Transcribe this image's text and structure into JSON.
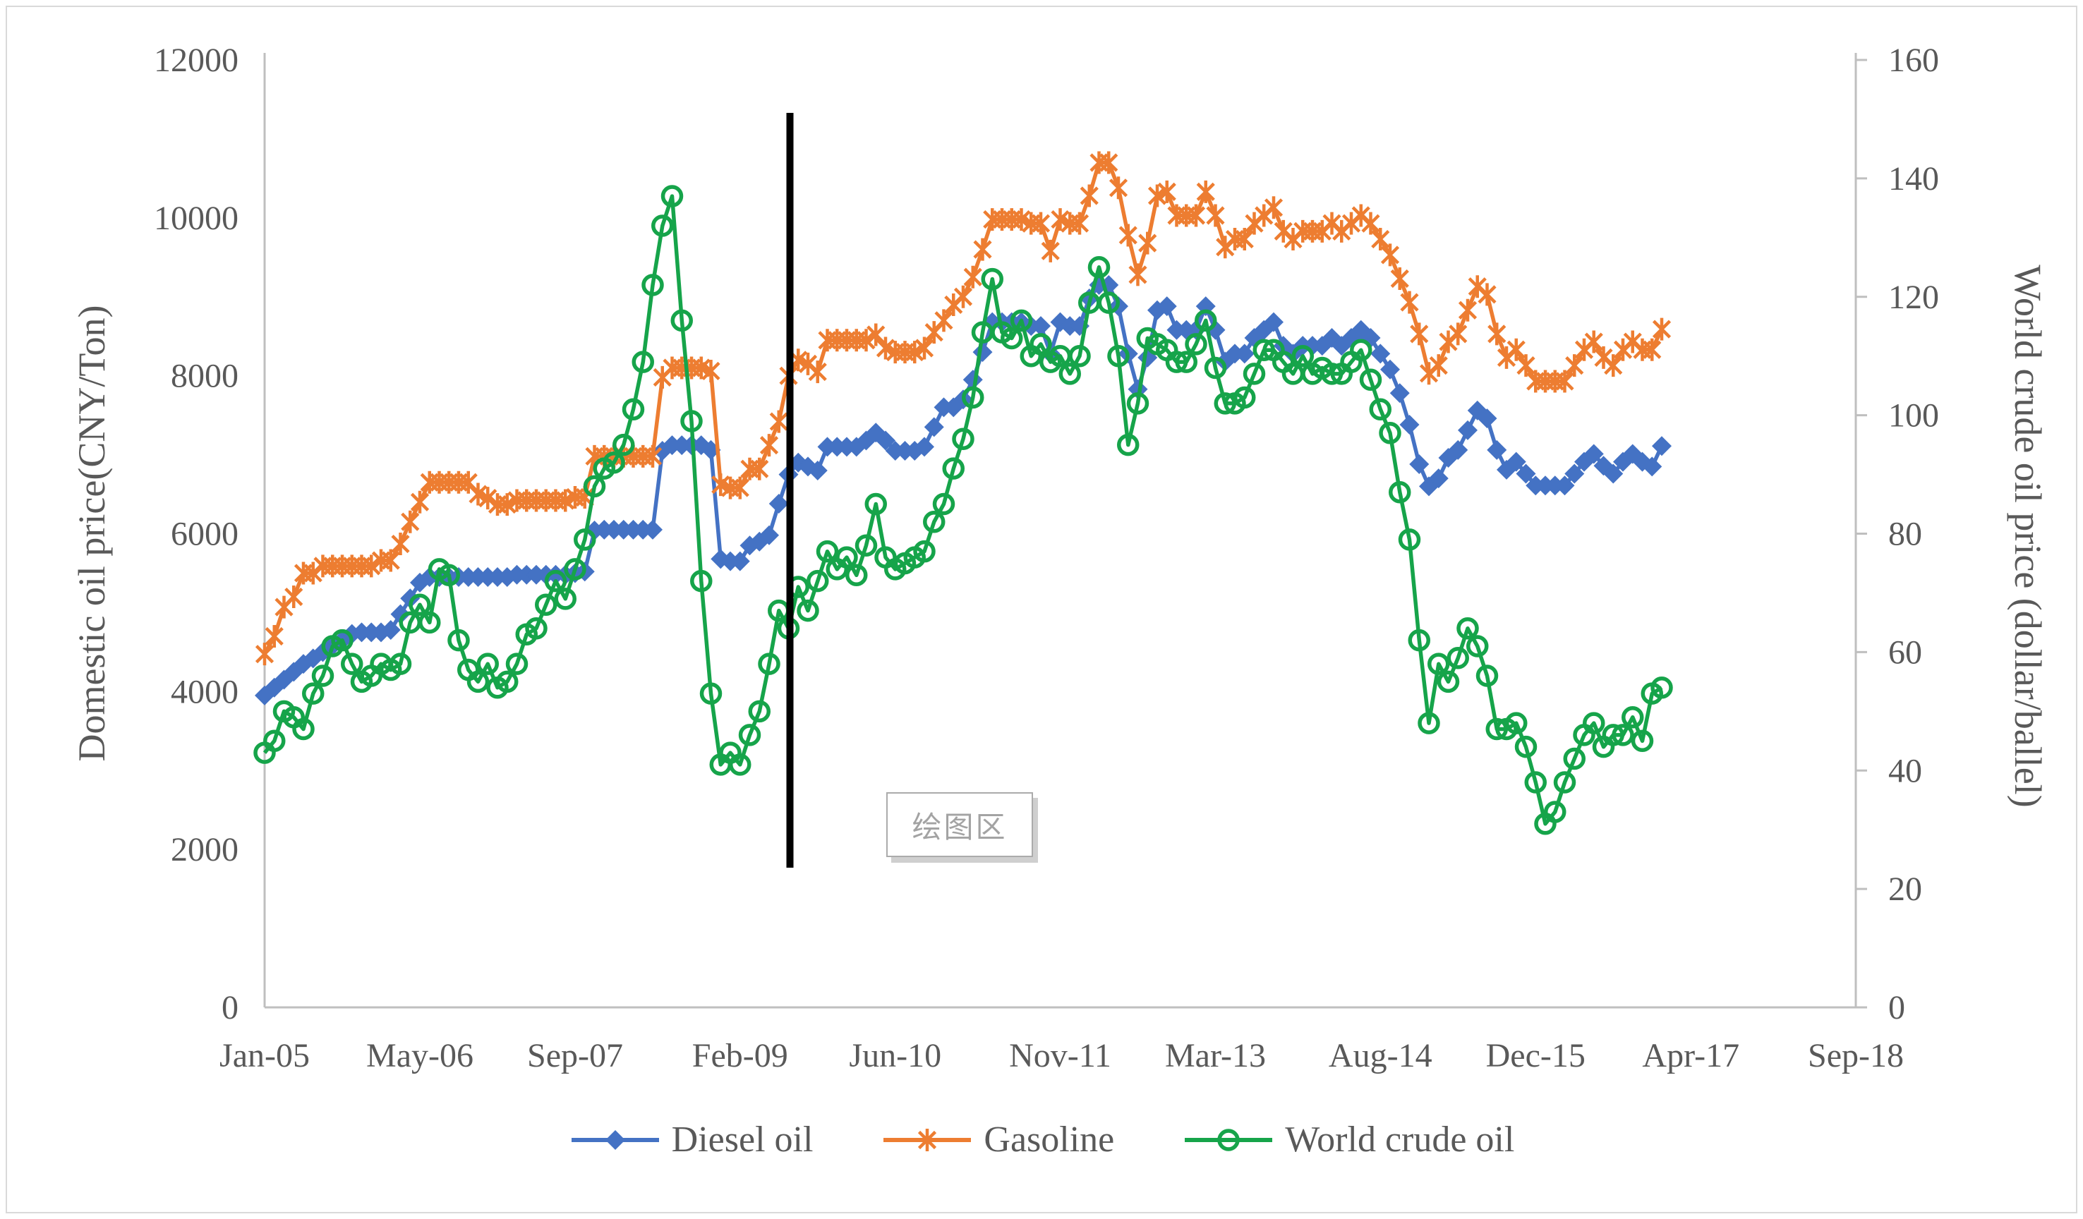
{
  "chart_data": {
    "type": "line",
    "title": "",
    "n_points": 145,
    "x_start": "Jan-05",
    "x_end_of_data": "Jan-17",
    "x_axis": {
      "tick_labels": [
        "Jan-05",
        "May-06",
        "Sep-07",
        "Feb-09",
        "Jun-10",
        "Nov-11",
        "Mar-13",
        "Aug-14",
        "Dec-15",
        "Apr-17",
        "Sep-18"
      ],
      "tick_month_indices": [
        0,
        16,
        32,
        49,
        65,
        82,
        98,
        115,
        131,
        147,
        164
      ],
      "total_months": 164
    },
    "left_axis": {
      "label": "Domestic oil price(CNY/Ton)",
      "min": 0,
      "max": 12000,
      "step": 2000,
      "tick_labels": [
        "0",
        "2000",
        "4000",
        "6000",
        "8000",
        "10000",
        "12000"
      ]
    },
    "right_axis": {
      "label": "World crude oil price (dollar/ballel)",
      "min": 0,
      "max": 160,
      "step": 20,
      "tick_labels": [
        "0",
        "20",
        "40",
        "60",
        "80",
        "100",
        "120",
        "140",
        "160"
      ]
    },
    "grid": false,
    "legend_position": "bottom",
    "series": [
      {
        "name": "Diesel oil",
        "axis": "left",
        "color": "#4472C4",
        "marker": "diamond",
        "values": [
          3950,
          4050,
          4150,
          4250,
          4350,
          4420,
          4500,
          4580,
          4650,
          4730,
          4750,
          4750,
          4750,
          4780,
          4980,
          5180,
          5380,
          5450,
          5450,
          5450,
          5450,
          5450,
          5450,
          5450,
          5450,
          5450,
          5480,
          5480,
          5480,
          5480,
          5480,
          5480,
          5500,
          5520,
          6040,
          6050,
          6050,
          6050,
          6050,
          6050,
          6050,
          7050,
          7120,
          7120,
          7120,
          7120,
          7060,
          5680,
          5650,
          5650,
          5850,
          5900,
          5980,
          6380,
          6750,
          6900,
          6850,
          6800,
          7100,
          7100,
          7100,
          7100,
          7180,
          7280,
          7180,
          7050,
          7050,
          7050,
          7100,
          7350,
          7600,
          7600,
          7700,
          7950,
          8300,
          8680,
          8680,
          8680,
          8680,
          8630,
          8630,
          8280,
          8680,
          8630,
          8630,
          8980,
          9150,
          9150,
          8880,
          8280,
          7830,
          8230,
          8830,
          8880,
          8580,
          8580,
          8580,
          8880,
          8580,
          8180,
          8280,
          8280,
          8480,
          8580,
          8680,
          8380,
          8280,
          8380,
          8380,
          8380,
          8480,
          8380,
          8480,
          8580,
          8480,
          8280,
          8080,
          7780,
          7380,
          6880,
          6600,
          6700,
          6960,
          7060,
          7310,
          7560,
          7460,
          7060,
          6810,
          6910,
          6760,
          6610,
          6610,
          6610,
          6610,
          6760,
          6910,
          7010,
          6860,
          6760,
          6910,
          7010,
          6910,
          6850,
          7110
        ]
      },
      {
        "name": "Gasoline",
        "axis": "left",
        "color": "#ED7D31",
        "marker": "asterisk",
        "values": [
          4475,
          4700,
          5070,
          5200,
          5500,
          5500,
          5590,
          5590,
          5590,
          5590,
          5590,
          5590,
          5660,
          5660,
          5870,
          6150,
          6400,
          6650,
          6650,
          6650,
          6650,
          6650,
          6500,
          6450,
          6370,
          6370,
          6420,
          6420,
          6420,
          6420,
          6420,
          6420,
          6460,
          6460,
          6980,
          6980,
          6980,
          6980,
          6980,
          6980,
          6980,
          7980,
          8100,
          8100,
          8100,
          8100,
          8060,
          6620,
          6580,
          6580,
          6820,
          6820,
          7120,
          7420,
          8000,
          8200,
          8150,
          8050,
          8450,
          8450,
          8450,
          8450,
          8450,
          8520,
          8350,
          8300,
          8300,
          8300,
          8350,
          8550,
          8700,
          8900,
          9000,
          9250,
          9600,
          9980,
          9980,
          9980,
          9980,
          9930,
          9930,
          9580,
          9980,
          9930,
          9930,
          10280,
          10700,
          10700,
          10380,
          9780,
          9280,
          9680,
          10280,
          10330,
          10030,
          10030,
          10030,
          10330,
          10030,
          9630,
          9730,
          9730,
          9930,
          10030,
          10130,
          9830,
          9730,
          9830,
          9830,
          9830,
          9930,
          9830,
          9930,
          10030,
          9930,
          9730,
          9530,
          9230,
          8930,
          8530,
          8030,
          8130,
          8430,
          8530,
          8830,
          9130,
          9030,
          8530,
          8230,
          8330,
          8130,
          7930,
          7930,
          7930,
          7930,
          8130,
          8330,
          8430,
          8230,
          8130,
          8330,
          8430,
          8330,
          8330,
          8590
        ]
      },
      {
        "name": "World crude oil",
        "axis": "right",
        "color": "#16A44A",
        "marker": "circle",
        "values": [
          43,
          45,
          50,
          49,
          47,
          53,
          56,
          61,
          62,
          58,
          55,
          56,
          58,
          57,
          58,
          65,
          68,
          65,
          74,
          73,
          62,
          57,
          55,
          58,
          54,
          55,
          58,
          63,
          64,
          68,
          72,
          69,
          74,
          79,
          88,
          91,
          92,
          95,
          101,
          109,
          122,
          132,
          137,
          116,
          99,
          72,
          53,
          41,
          43,
          41,
          46,
          50,
          58,
          67,
          64,
          71,
          67,
          72,
          77,
          74,
          76,
          73,
          78,
          85,
          76,
          74,
          75,
          76,
          77,
          82,
          85,
          91,
          96,
          103,
          114,
          123,
          114,
          113,
          116,
          110,
          112,
          109,
          110,
          107,
          110,
          119,
          125,
          119,
          110,
          95,
          102,
          113,
          112,
          111,
          109,
          109,
          112,
          116,
          108,
          102,
          102,
          103,
          107,
          111,
          111,
          109,
          107,
          110,
          107,
          108,
          107,
          107,
          109,
          111,
          106,
          101,
          97,
          87,
          79,
          62,
          48,
          58,
          55,
          59,
          64,
          61,
          56,
          47,
          47,
          48,
          44,
          38,
          31,
          33,
          38,
          42,
          46,
          48,
          44,
          46,
          46,
          49,
          45,
          53,
          54
        ]
      }
    ],
    "annotations": {
      "vertical_line": {
        "description": "black event marker line",
        "month_index": 54,
        "color": "#000000"
      },
      "tooltip": {
        "text": "绘图区"
      }
    }
  },
  "legend": {
    "items": [
      {
        "label": "Diesel oil"
      },
      {
        "label": "Gasoline"
      },
      {
        "label": "World crude oil"
      }
    ]
  },
  "axis_titles": {
    "left": "Domestic oil price(CNY/Ton)",
    "right": "World crude oil price (dollar/ballel)"
  },
  "colors": {
    "axis_line": "#BFBFBF",
    "tick_text": "#595959",
    "outer_border": "#D9D9D9",
    "tooltip_border": "#ABABAB",
    "tooltip_text": "#A3A3A3"
  }
}
